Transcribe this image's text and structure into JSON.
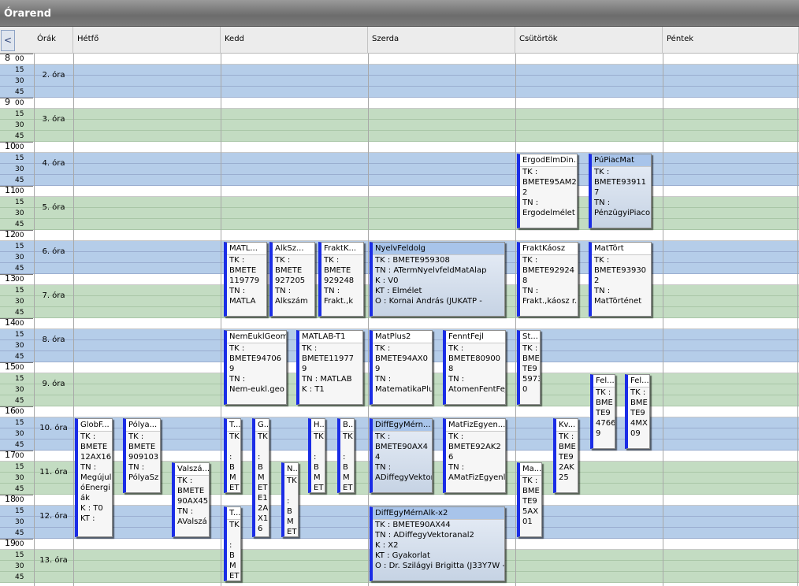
{
  "window": {
    "title": "Órarend"
  },
  "header": {
    "nav": "<",
    "hours": "Órák",
    "days": [
      "Hétfő",
      "Kedd",
      "Szerda",
      "Csütörtök",
      "Péntek"
    ]
  },
  "time": {
    "hours": [
      "8",
      "9",
      "10",
      "11",
      "12",
      "13",
      "14",
      "15",
      "16",
      "17",
      "18",
      "19"
    ],
    "minutes": [
      "00",
      "15",
      "30",
      "45"
    ],
    "periods": [
      "2. óra",
      "3. óra",
      "4. óra",
      "5. óra",
      "6. óra",
      "7. óra",
      "8. óra",
      "9. óra",
      "10. óra",
      "11. óra",
      "12. óra",
      "13. óra"
    ]
  },
  "events": [
    {
      "day": "Csütörtök",
      "start": "10:15",
      "end": "11:45",
      "title": "ErgodElmDin...",
      "lines": [
        "TK :",
        "BMETE95AM2",
        "2",
        "TN :",
        "Ergodelmélet"
      ]
    },
    {
      "day": "Csütörtök",
      "start": "10:15",
      "end": "11:45",
      "title": "PúPiacMat",
      "selected": true,
      "lines": [
        "TK :",
        "BMETE93911",
        "7",
        "TN :",
        "PénzügyiPiaco"
      ]
    },
    {
      "day": "Kedd",
      "start": "12:15",
      "end": "13:45",
      "title": "MATL...",
      "lines": [
        "TK :",
        "BMETE",
        "119779",
        "TN :",
        "MATLA"
      ]
    },
    {
      "day": "Kedd",
      "start": "12:15",
      "end": "13:45",
      "title": "AlkSz...",
      "lines": [
        "TK :",
        "BMETE",
        "927205",
        "TN :",
        "Alkszám"
      ]
    },
    {
      "day": "Kedd",
      "start": "12:15",
      "end": "13:45",
      "title": "FraktK...",
      "lines": [
        "TK :",
        "BMETE",
        "929248",
        "TN :",
        "Frakt.,k"
      ]
    },
    {
      "day": "Szerda",
      "start": "12:15",
      "end": "13:45",
      "title": "NyelvFeldolg",
      "selected": true,
      "lines": [
        "TK : BMETE959308",
        "TN : ATermNyelvfeldMatAlap",
        "K : V0",
        "KT : Elmélet",
        "O : Kornai András (JUKATP -"
      ]
    },
    {
      "day": "Csütörtök",
      "start": "12:15",
      "end": "13:45",
      "title": "FraktKáosz",
      "lines": [
        "TK :",
        "BMETE92924",
        "8",
        "TN :",
        "Frakt.,káosz r."
      ]
    },
    {
      "day": "Csütörtök",
      "start": "12:15",
      "end": "13:45",
      "title": "MatTört",
      "lines": [
        "TK :",
        "BMETE93930",
        "2",
        "TN :",
        "MatTörténet"
      ]
    },
    {
      "day": "Kedd",
      "start": "14:15",
      "end": "15:45",
      "title": "NemEuklGeom",
      "lines": [
        "TK :",
        "BMETE94706",
        "9",
        "TN :",
        "Nem-eukl.geo"
      ]
    },
    {
      "day": "Kedd",
      "start": "14:15",
      "end": "15:45",
      "title": "MATLAB-T1",
      "lines": [
        "TK :",
        "BMETE11977",
        "9",
        "TN : MATLAB",
        "K : T1"
      ]
    },
    {
      "day": "Szerda",
      "start": "14:15",
      "end": "15:45",
      "title": "MatPlus2",
      "lines": [
        "TK :",
        "BMETE94AX0",
        "9",
        "TN :",
        "MatematikaPlu"
      ]
    },
    {
      "day": "Szerda",
      "start": "14:15",
      "end": "15:45",
      "title": "FenntFejl",
      "lines": [
        "TK :",
        "BMETE80900",
        "8",
        "TN :",
        "AtomenFentFej"
      ]
    },
    {
      "day": "Csütörtök",
      "start": "14:15",
      "end": "15:45",
      "title": "St...",
      "lines": [
        "TK :",
        "BME",
        "TE9",
        "5973",
        "0"
      ]
    },
    {
      "day": "Csütörtök",
      "start": "15:15",
      "end": "16:45",
      "title": "Fel...",
      "lines": [
        "TK :",
        "BME",
        "TE9",
        "4766",
        "9"
      ]
    },
    {
      "day": "Csütörtök",
      "start": "15:15",
      "end": "16:45",
      "title": "Fel...",
      "lines": [
        "TK :",
        "BME",
        "TE9",
        "4MX",
        "09"
      ]
    },
    {
      "day": "Hétfő",
      "start": "16:15",
      "end": "18:45",
      "title": "GlobF...",
      "lines": [
        "TK :",
        "BMETE",
        "12AX16",
        "TN :",
        "Megújul",
        "óEnergi",
        "ák",
        "K : T0",
        "KT :"
      ]
    },
    {
      "day": "Hétfő",
      "start": "16:15",
      "end": "17:45",
      "title": "Pólya...",
      "lines": [
        "TK :",
        "BMETE",
        "909103",
        "TN :",
        "PólyaSz"
      ]
    },
    {
      "day": "Hétfő",
      "start": "17:15",
      "end": "18:45",
      "title": "Valszá...",
      "lines": [
        "TK :",
        "BMETE",
        "90AX45",
        "TN :",
        "AValszá"
      ]
    },
    {
      "day": "Kedd",
      "start": "16:15",
      "end": "17:45",
      "title": "T...",
      "lines": [
        "TK",
        "",
        ":",
        "B",
        "M",
        "ET"
      ]
    },
    {
      "day": "Kedd",
      "start": "16:15",
      "end": "18:45",
      "title": "G...",
      "lines": [
        "TK",
        "",
        ":",
        "B",
        "M",
        "ET",
        "E1",
        "2A",
        "X1",
        "6"
      ]
    },
    {
      "day": "Kedd",
      "start": "17:15",
      "end": "18:45",
      "title": "N...",
      "lines": [
        "TK",
        "",
        ":",
        "B",
        "M",
        "ET"
      ]
    },
    {
      "day": "Kedd",
      "start": "16:15",
      "end": "17:45",
      "title": "H...",
      "lines": [
        "TK",
        "",
        ":",
        "B",
        "M",
        "ET"
      ]
    },
    {
      "day": "Kedd",
      "start": "16:15",
      "end": "17:45",
      "title": "B...",
      "lines": [
        "TK",
        "",
        ":",
        "B",
        "M",
        "ET"
      ]
    },
    {
      "day": "Kedd",
      "start": "18:15",
      "end": "19:45",
      "title": "T...",
      "lines": [
        "TK",
        "",
        ":",
        "B",
        "M",
        "ET"
      ]
    },
    {
      "day": "Szerda",
      "start": "16:15",
      "end": "17:45",
      "title": "DiffEgyMérn...",
      "selected": true,
      "lines": [
        "TK :",
        "BMETE90AX4",
        "4",
        "TN :",
        "ADiffegyVektor"
      ]
    },
    {
      "day": "Szerda",
      "start": "16:15",
      "end": "17:45",
      "title": "MatFizEgyen...",
      "lines": [
        "TK :",
        "BMETE92AK2",
        "6",
        "TN :",
        "AMatFizEgyenl"
      ]
    },
    {
      "day": "Szerda",
      "start": "18:15",
      "end": "19:45",
      "title": "DiffEgyMérnAlk-x2",
      "selected": true,
      "lines": [
        "TK : BMETE90AX44",
        "TN : ADiffegyVektoranal2",
        "K : X2",
        "KT : Gyakorlat",
        "O : Dr. Szilágyi Brigitta (J33Y7W -"
      ]
    },
    {
      "day": "Csütörtök",
      "start": "16:15",
      "end": "17:45",
      "title": "Kv...",
      "lines": [
        "TK :",
        "BME",
        "TE9",
        "2AK",
        "25"
      ]
    },
    {
      "day": "Csütörtök",
      "start": "17:15",
      "end": "18:45",
      "title": "Ma...",
      "lines": [
        "TK :",
        "BME",
        "TE9",
        "5AX",
        "01"
      ]
    }
  ]
}
